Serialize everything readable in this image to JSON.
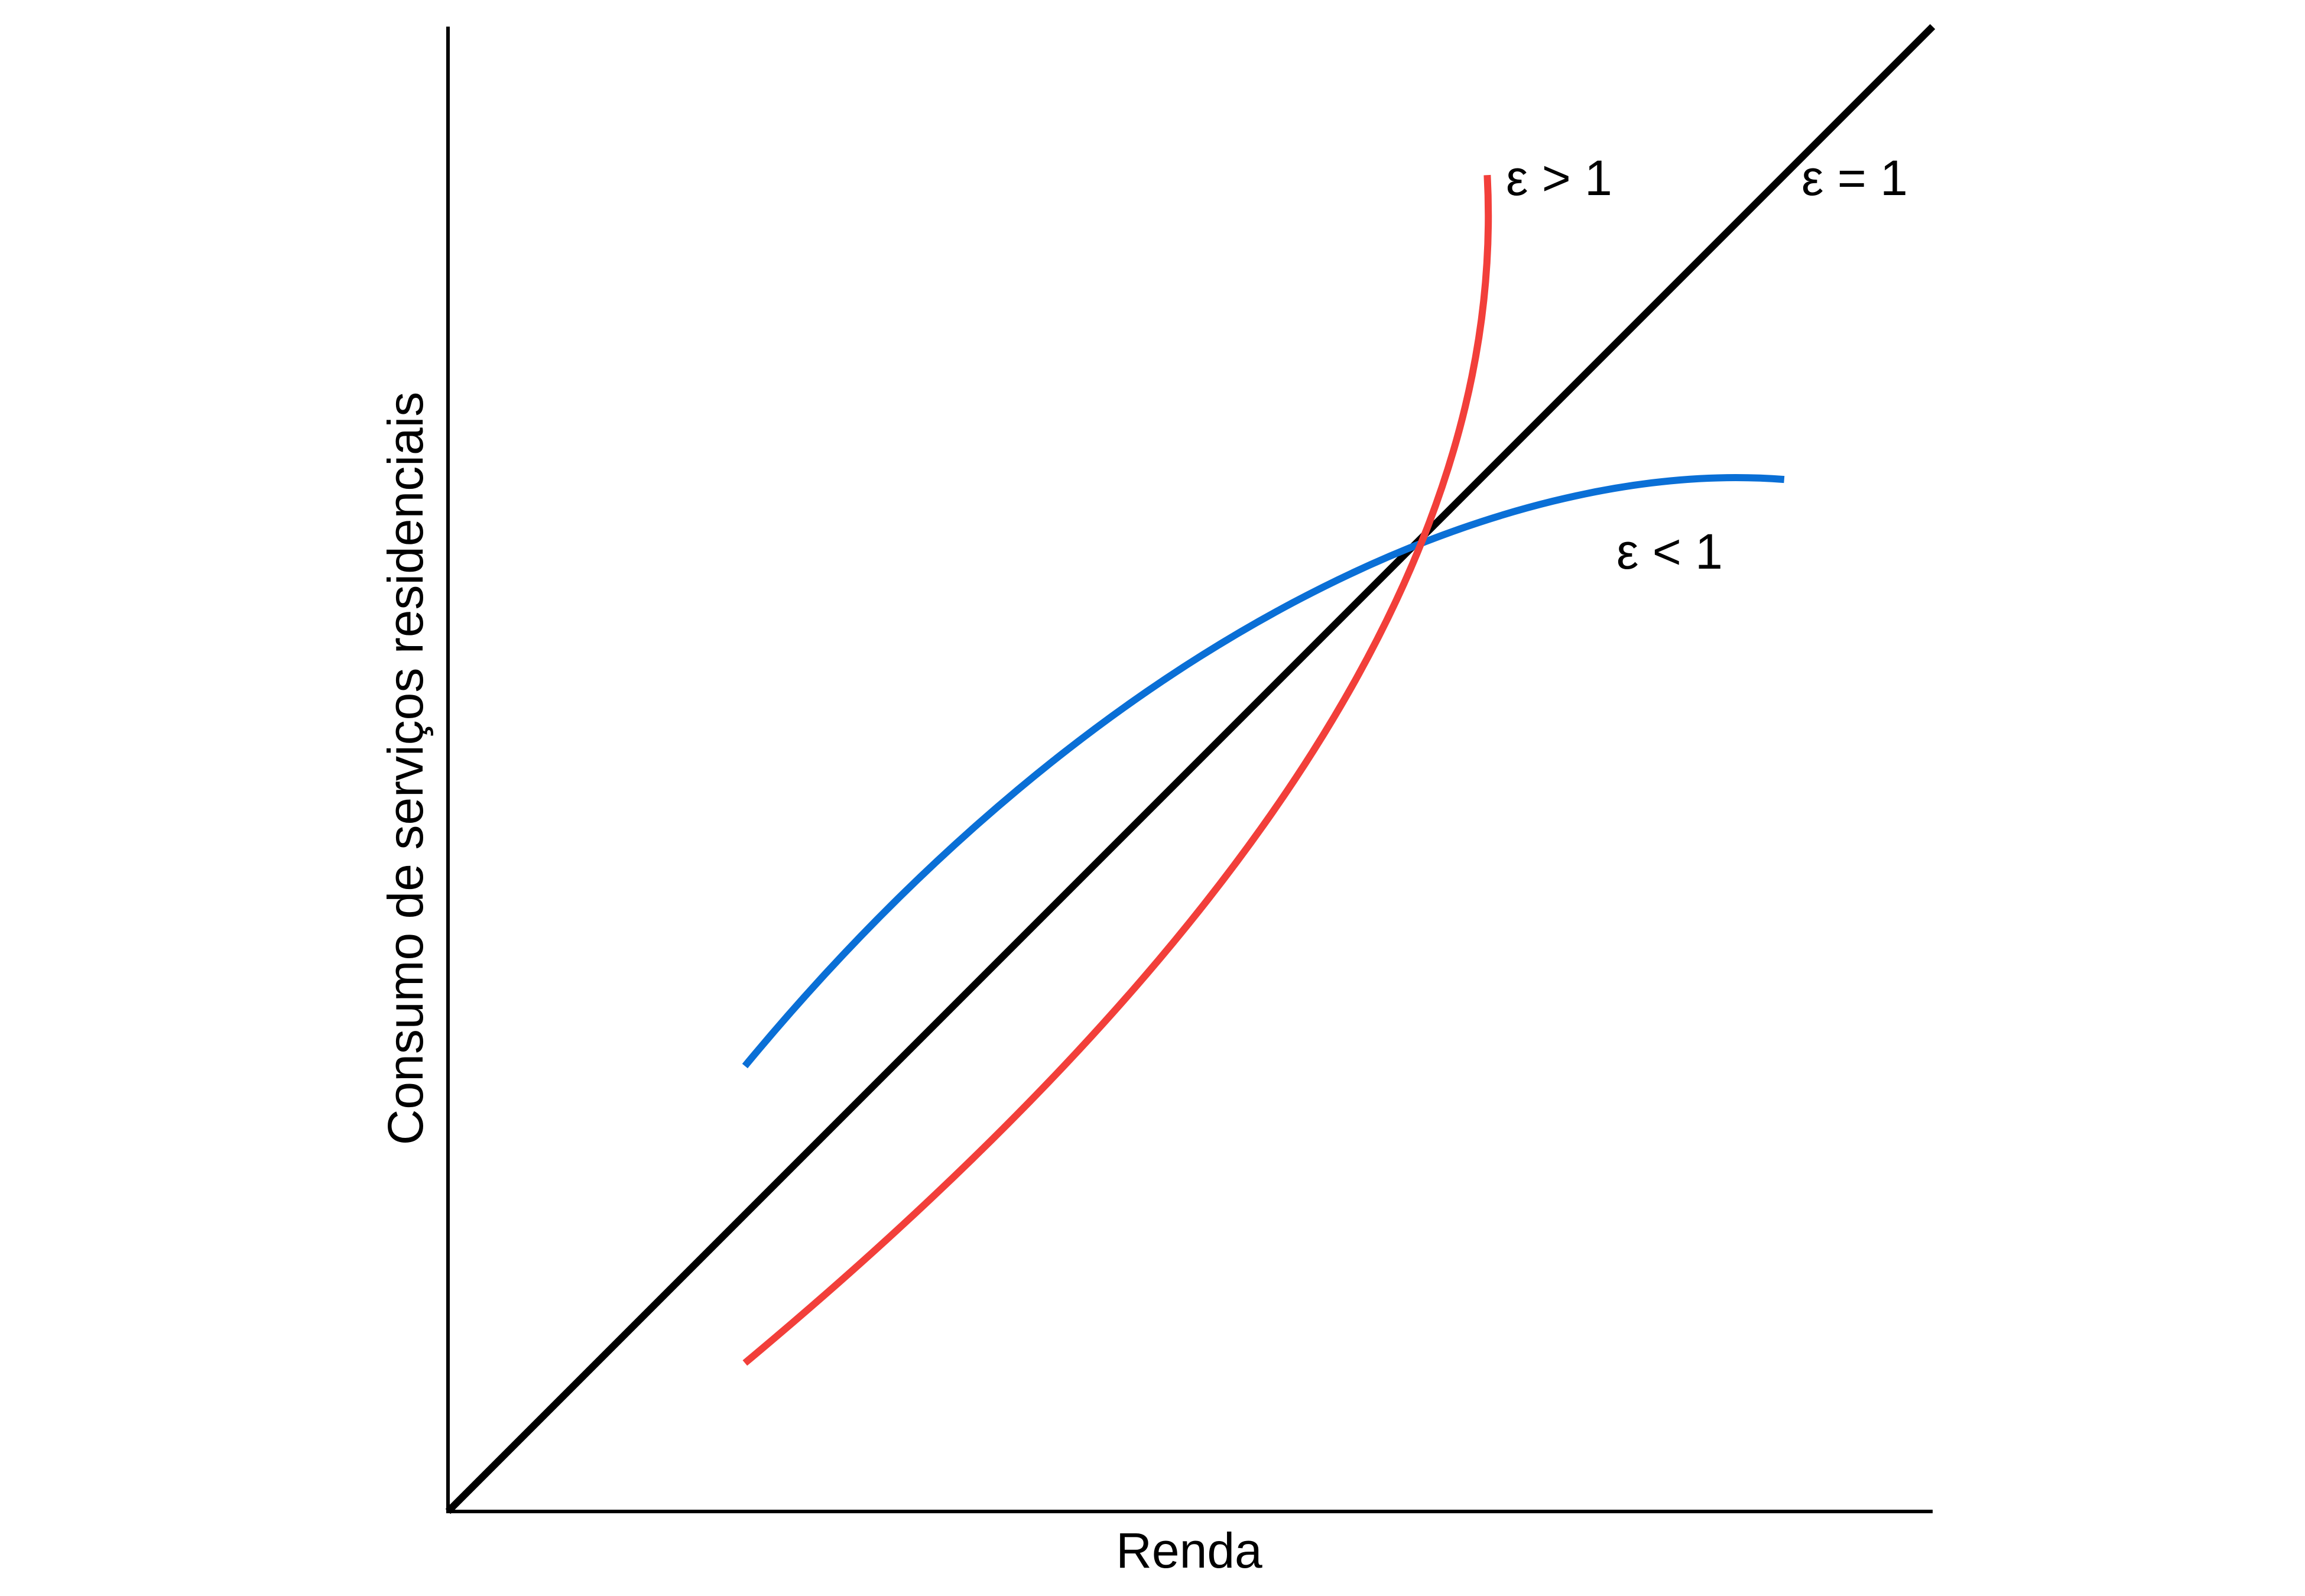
{
  "chart_data": {
    "type": "line",
    "title": "",
    "xlabel": "Renda",
    "ylabel": "Consumo de serviços residenciais",
    "xlim": [
      0,
      10
    ],
    "ylim": [
      0,
      10
    ],
    "grid": false,
    "legend": "none",
    "series": [
      {
        "name": "ε = 1",
        "color": "#000000",
        "points": [
          [
            0,
            0
          ],
          [
            10,
            10
          ]
        ]
      },
      {
        "name": "ε < 1",
        "color": "#0a6fd6",
        "points": [
          [
            2.0,
            3.0
          ],
          [
            4.4,
            5.9
          ],
          [
            7.1,
            7.1
          ],
          [
            9.0,
            6.95
          ]
        ]
      },
      {
        "name": "ε > 1",
        "color": "#f23f3a",
        "points": [
          [
            2.0,
            1.0
          ],
          [
            6.2,
            4.5
          ],
          [
            7.1,
            7.1
          ],
          [
            7.0,
            9.0
          ]
        ]
      }
    ]
  }
}
